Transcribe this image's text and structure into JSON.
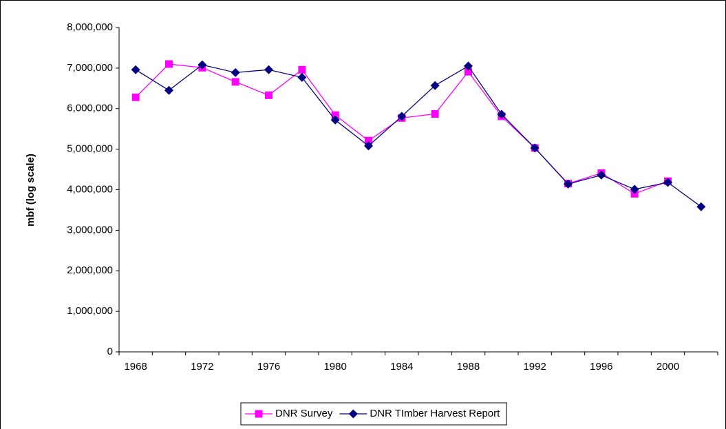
{
  "chart_data": {
    "type": "line",
    "y_label": "mbf (log scale)",
    "categories": [
      1968,
      null,
      1972,
      null,
      1976,
      null,
      1980,
      null,
      1984,
      null,
      1988,
      null,
      1992,
      null,
      1996,
      null,
      2000,
      null
    ],
    "series": [
      {
        "name": "DNR Survey",
        "color": "#ff00ff",
        "marker": "square",
        "values": [
          6280000,
          7100000,
          7010000,
          6660000,
          6330000,
          6960000,
          5840000,
          5210000,
          5770000,
          5870000,
          6910000,
          5810000,
          5030000,
          4150000,
          4410000,
          3900000,
          4210000,
          null
        ]
      },
      {
        "name": "DNR TImber Harvest Report",
        "color": "#000080",
        "marker": "diamond",
        "values": [
          6960000,
          6450000,
          7080000,
          6890000,
          6960000,
          6770000,
          5720000,
          5080000,
          5810000,
          6570000,
          7050000,
          5860000,
          5030000,
          4140000,
          4360000,
          4010000,
          4180000,
          3580000
        ]
      }
    ],
    "ylim": [
      0,
      8000000
    ],
    "yticks": [
      0,
      {
        "value": 1000000,
        "label": "1,000,000"
      },
      {
        "value": 2000000,
        "label": "2,000,000"
      },
      {
        "value": 3000000,
        "label": "3,000,000"
      },
      {
        "value": 4000000,
        "label": "4,000,000"
      },
      {
        "value": 5000000,
        "label": "5,000,000"
      },
      {
        "value": 6000000,
        "label": "6,000,000"
      },
      {
        "value": 7000000,
        "label": "7,000,000"
      },
      {
        "value": 8000000,
        "label": "8,000,000"
      }
    ],
    "grid": false,
    "legend": "bottom"
  }
}
